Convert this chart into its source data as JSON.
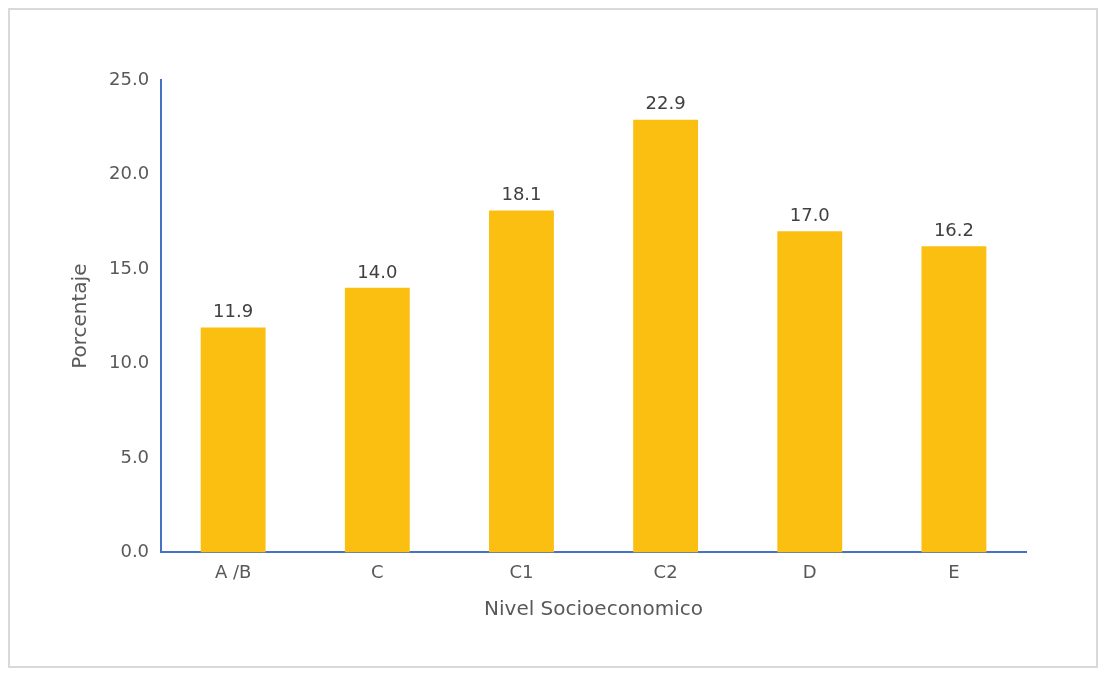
{
  "chart_data": {
    "type": "bar",
    "xlabel": "Nivel Socioeconomico",
    "ylabel": "Porcentaje",
    "categories": [
      "A /B",
      "C",
      "C1",
      "C2",
      "D",
      "E"
    ],
    "values": [
      11.9,
      14.0,
      18.1,
      22.9,
      17.0,
      16.2
    ],
    "value_labels": [
      "11.9",
      "14.0",
      "18.1",
      "22.9",
      "17.0",
      "16.2"
    ],
    "color": "#fbbf12",
    "ylim": [
      0,
      25
    ],
    "yticks": [
      {
        "value": 0,
        "label": "0.0"
      },
      {
        "value": 5,
        "label": "5.0"
      },
      {
        "value": 10,
        "label": "10.0"
      },
      {
        "value": 15,
        "label": "15.0"
      },
      {
        "value": 20,
        "label": "20.0"
      },
      {
        "value": 25,
        "label": "25.0"
      }
    ],
    "grid": false,
    "legend": false
  }
}
